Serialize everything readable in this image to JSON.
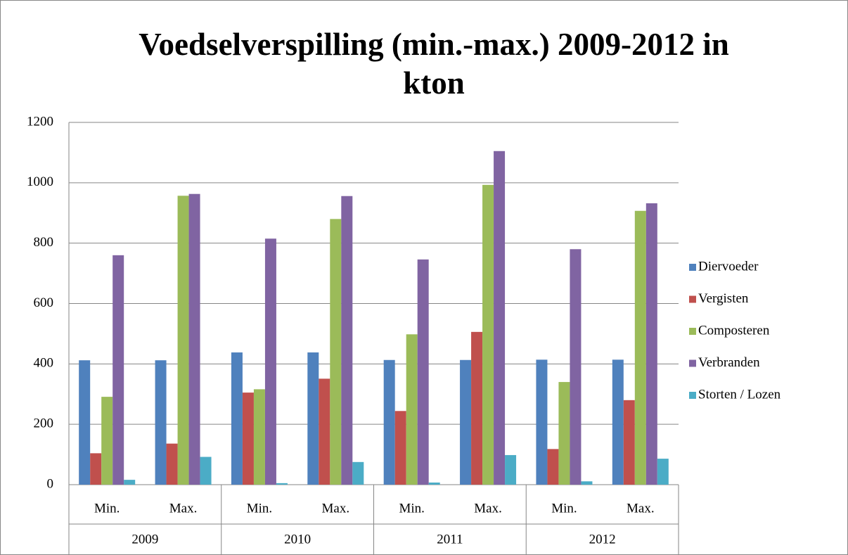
{
  "chart_data": {
    "type": "bar",
    "title": "Voedselverspilling (min.-max.) 2009-2012 in kton",
    "categories": [
      "Min.",
      "Max.",
      "Min.",
      "Max.",
      "Min.",
      "Max.",
      "Min.",
      "Max."
    ],
    "category_groups": [
      "2009",
      "2010",
      "2011",
      "2012"
    ],
    "series": [
      {
        "name": "Diervoeder",
        "color": "#4f81bd",
        "values": [
          412,
          412,
          438,
          438,
          413,
          413,
          414,
          414
        ]
      },
      {
        "name": "Vergisten",
        "color": "#c0504d",
        "values": [
          104,
          136,
          305,
          351,
          244,
          506,
          118,
          280
        ]
      },
      {
        "name": "Composteren",
        "color": "#9bbb59",
        "values": [
          291,
          957,
          316,
          880,
          498,
          993,
          340,
          907
        ]
      },
      {
        "name": "Verbranden",
        "color": "#8064a2",
        "values": [
          760,
          963,
          815,
          956,
          746,
          1105,
          780,
          932
        ]
      },
      {
        "name": "Storten / Lozen",
        "color": "#4bacc6",
        "values": [
          16,
          92,
          5,
          75,
          7,
          98,
          11,
          86
        ]
      }
    ],
    "ylim": [
      0,
      1200
    ],
    "yticks": [
      0,
      200,
      400,
      600,
      800,
      1000,
      1200
    ],
    "grid": true,
    "legend": "right"
  }
}
